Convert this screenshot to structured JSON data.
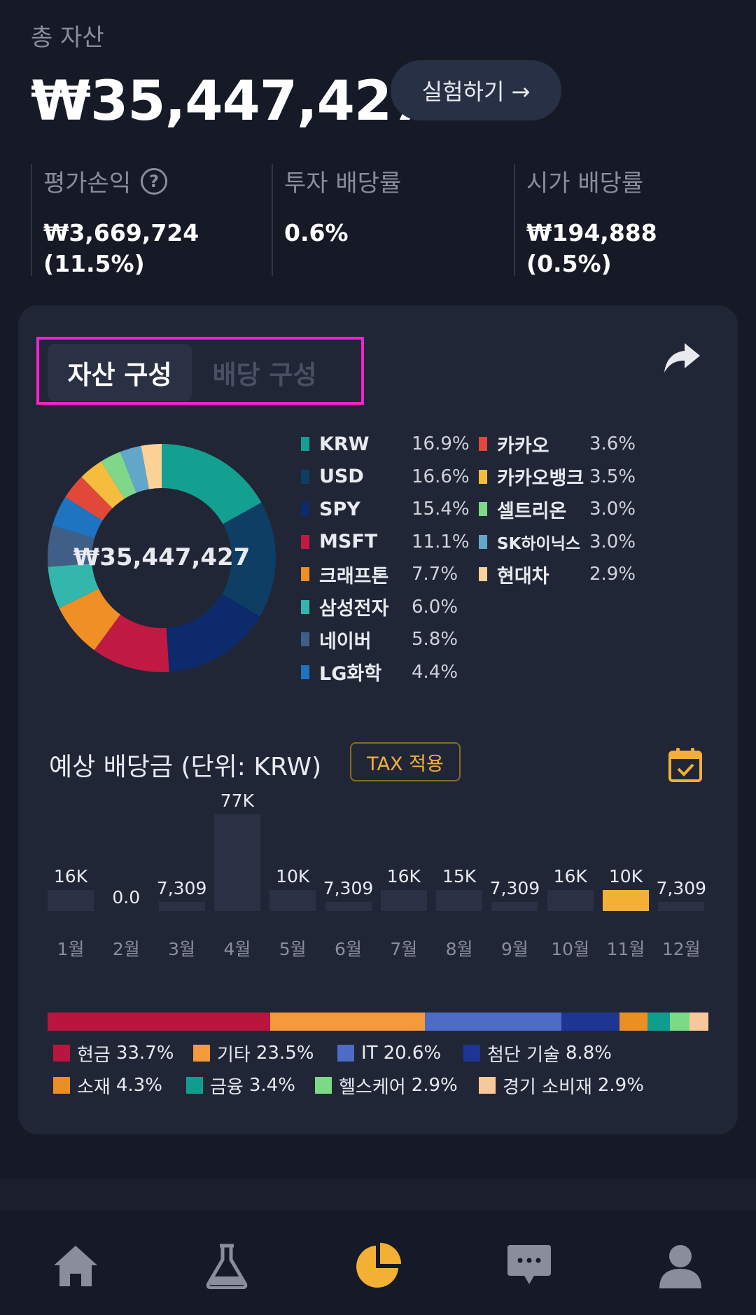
{
  "header": {
    "total_label": "총 자산",
    "total_amount": "₩35,447,427",
    "experiment_button": "실험하기 →"
  },
  "stats": [
    {
      "label": "평가손익",
      "value_line1": "₩3,669,724",
      "value_line2": "(11.5%)",
      "help_icon": "?"
    },
    {
      "label": "투자 배당률",
      "value_line1": "0.6%"
    },
    {
      "label": "시가 배당률",
      "value_line1": "₩194,888 (0.5%)"
    }
  ],
  "tabs": {
    "active": "자산 구성",
    "inactive": "배당 구성"
  },
  "donut": {
    "center_label": "₩35,447,427",
    "slices": [
      {
        "name": "KRW",
        "pct": "16.9%",
        "value": 16.9,
        "color": "#14a091"
      },
      {
        "name": "USD",
        "pct": "16.6%",
        "value": 16.6,
        "color": "#0e3e64"
      },
      {
        "name": "SPY",
        "pct": "15.4%",
        "value": 15.4,
        "color": "#0c2a6c"
      },
      {
        "name": "MSFT",
        "pct": "11.1%",
        "value": 11.1,
        "color": "#c01a42"
      },
      {
        "name": "크래프톤",
        "pct": "7.7%",
        "value": 7.7,
        "color": "#ef8f26"
      },
      {
        "name": "삼성전자",
        "pct": "6.0%",
        "value": 6.0,
        "color": "#33b7ad"
      },
      {
        "name": "네이버",
        "pct": "5.8%",
        "value": 5.8,
        "color": "#3f5f86"
      },
      {
        "name": "LG화학",
        "pct": "4.4%",
        "value": 4.4,
        "color": "#1f74c2"
      },
      {
        "name": "카카오",
        "pct": "3.6%",
        "value": 3.6,
        "color": "#e2483a"
      },
      {
        "name": "카카오뱅크",
        "pct": "3.5%",
        "value": 3.5,
        "color": "#f4bd3e"
      },
      {
        "name": "셀트리온",
        "pct": "3.0%",
        "value": 3.0,
        "color": "#7fd88a"
      },
      {
        "name": "SK하이닉스",
        "pct": "3.0%",
        "value": 3.0,
        "color": "#62a6c9"
      },
      {
        "name": "현대차",
        "pct": "2.9%",
        "value": 2.9,
        "color": "#fad196"
      }
    ]
  },
  "dividend": {
    "title": "예상 배당금 (단위: KRW)",
    "tax_button": "TAX 적용",
    "highlight_color": "#f2b134",
    "bar_color": "#2b3144"
  },
  "chart_data": {
    "type": "bar",
    "categories": [
      "1월",
      "2월",
      "3월",
      "4월",
      "5월",
      "6월",
      "7월",
      "8월",
      "9월",
      "10월",
      "11월",
      "12월"
    ],
    "labels": [
      "16K",
      "0.0",
      "7,309",
      "77K",
      "10K",
      "7,309",
      "16K",
      "15K",
      "7,309",
      "16K",
      "10K",
      "7,309"
    ],
    "values": [
      16000,
      0,
      7309,
      77000,
      10000,
      7309,
      16000,
      15000,
      7309,
      16000,
      10000,
      7309
    ],
    "highlighted_index": 10
  },
  "sectors": [
    {
      "name": "현금",
      "pct": "33.7%",
      "value": 33.7,
      "color": "#b8163f"
    },
    {
      "name": "기타",
      "pct": "23.5%",
      "value": 23.5,
      "color": "#f39a3c"
    },
    {
      "name": "IT",
      "pct": "20.6%",
      "value": 20.6,
      "color": "#4c6cc5"
    },
    {
      "name": "첨단 기술",
      "pct": "8.8%",
      "value": 8.8,
      "color": "#1f3594"
    },
    {
      "name": "소재",
      "pct": "4.3%",
      "value": 4.3,
      "color": "#e98f24"
    },
    {
      "name": "금융",
      "pct": "3.4%",
      "value": 3.4,
      "color": "#0f9e8e"
    },
    {
      "name": "헬스케어",
      "pct": "2.9%",
      "value": 2.9,
      "color": "#7ada86"
    },
    {
      "name": "경기 소비재",
      "pct": "2.9%",
      "value": 2.9,
      "color": "#f8c89a"
    }
  ],
  "nav": {
    "items": [
      "home-icon",
      "flask-icon",
      "pie-chart-icon",
      "chat-icon",
      "person-icon"
    ],
    "active_color": "#f2b134",
    "inactive_color": "#8a8e9a"
  }
}
